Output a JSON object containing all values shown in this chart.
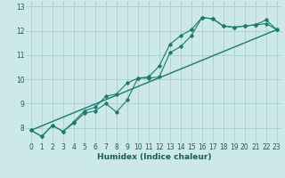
{
  "title": "",
  "xlabel": "Humidex (Indice chaleur)",
  "background_color": "#cce8e8",
  "grid_color": "#aad0d0",
  "line_color": "#1a7a6e",
  "xlim": [
    -0.5,
    23.5
  ],
  "ylim": [
    7.4,
    13.2
  ],
  "xticks": [
    0,
    1,
    2,
    3,
    4,
    5,
    6,
    7,
    8,
    9,
    10,
    11,
    12,
    13,
    14,
    15,
    16,
    17,
    18,
    19,
    20,
    21,
    22,
    23
  ],
  "yticks": [
    8,
    9,
    10,
    11,
    12,
    13
  ],
  "series1_x": [
    0,
    1,
    2,
    3,
    4,
    5,
    6,
    7,
    8,
    9,
    10,
    11,
    12,
    13,
    14,
    15,
    16,
    17,
    18,
    19,
    20,
    21,
    22,
    23
  ],
  "series1_y": [
    7.9,
    7.65,
    8.1,
    7.85,
    8.2,
    8.6,
    8.7,
    9.0,
    8.65,
    9.15,
    10.05,
    10.05,
    10.1,
    11.1,
    11.35,
    11.8,
    12.55,
    12.5,
    12.2,
    12.15,
    12.2,
    12.25,
    12.3,
    12.05
  ],
  "series2_x": [
    0,
    1,
    2,
    3,
    4,
    5,
    6,
    7,
    8,
    9,
    10,
    11,
    12,
    13,
    14,
    15,
    16,
    17,
    18,
    19,
    20,
    21,
    22,
    23
  ],
  "series2_y": [
    7.9,
    7.65,
    8.1,
    7.85,
    8.25,
    8.7,
    8.85,
    9.3,
    9.4,
    9.85,
    10.05,
    10.1,
    10.55,
    11.45,
    11.8,
    12.05,
    12.55,
    12.5,
    12.2,
    12.15,
    12.2,
    12.25,
    12.45,
    12.05
  ],
  "series3_x": [
    0,
    23
  ],
  "series3_y": [
    7.9,
    12.05
  ],
  "tick_fontsize": 5.5,
  "xlabel_fontsize": 6.5
}
